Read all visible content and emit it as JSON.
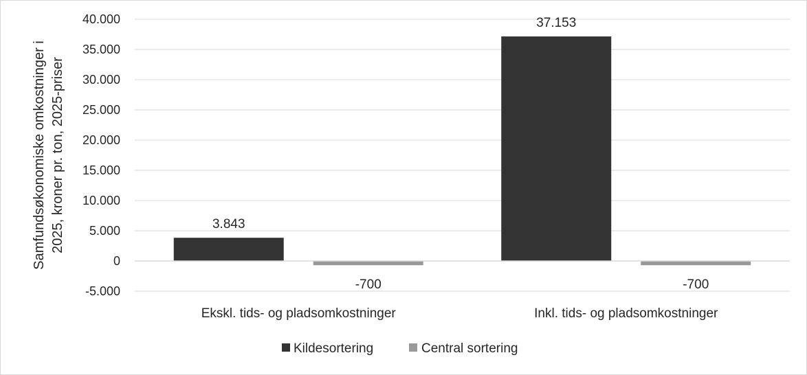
{
  "chart_data": {
    "type": "bar",
    "title": "",
    "xlabel": "",
    "ylabel_lines": [
      "Samfundsøkonomiske omkostninger i",
      "2025, kroner pr. ton, 2025-priser"
    ],
    "categories": [
      "Ekskl. tids- og pladsomkostninger",
      "Inkl. tids- og pladsomkostninger"
    ],
    "series": [
      {
        "name": "Kildesortering",
        "values": [
          3843,
          37153
        ],
        "labels": [
          "3.843",
          "37.153"
        ],
        "color": "#333333"
      },
      {
        "name": "Central sortering",
        "values": [
          -700,
          -700
        ],
        "labels": [
          "-700",
          "-700"
        ],
        "color": "#999999"
      }
    ],
    "ylim": [
      -5000,
      40000
    ],
    "yticks": [
      -5000,
      0,
      5000,
      10000,
      15000,
      20000,
      25000,
      30000,
      35000,
      40000
    ],
    "ytick_labels": [
      "-5.000",
      "0",
      "5.000",
      "10.000",
      "15.000",
      "20.000",
      "25.000",
      "30.000",
      "35.000",
      "40.000"
    ],
    "grid": true,
    "legend_position": "bottom"
  }
}
